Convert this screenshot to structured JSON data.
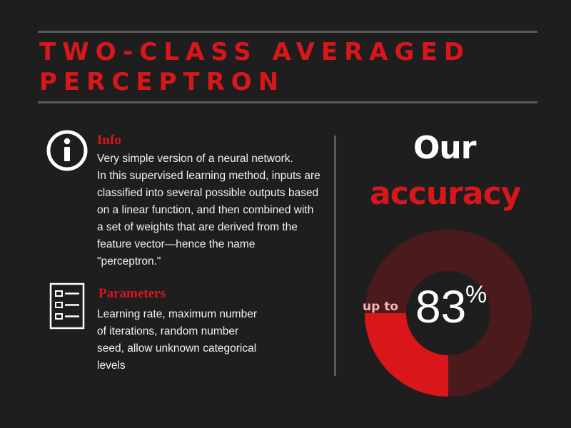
{
  "title": {
    "line1": "TWO-CLASS AVERAGED",
    "line2": "PERCEPTRON"
  },
  "info": {
    "heading": "Info",
    "icon": "info-icon",
    "lines": [
      "Very simple version of a neural network.",
      "In this supervised learning method, inputs are",
      "classified into several possible outputs based",
      "on a linear function, and then combined with",
      "a set of weights that are derived from the",
      "feature vector—hence the name",
      "\"perceptron.\""
    ]
  },
  "parameters": {
    "heading": "Parameters",
    "icon": "document-list-icon",
    "lines": [
      "Learning rate, maximum number",
      "of iterations, random number",
      "seed,  allow unknown categorical",
      "levels"
    ]
  },
  "accuracy": {
    "line1": "Our",
    "line2": "accuracy",
    "prefix": "up to",
    "value": "83",
    "unit": "%",
    "fraction": 0.83
  },
  "colors": {
    "background": "#1e1e1f",
    "accent_red": "#d9171b",
    "dark_red": "#4a1a1c",
    "rule_gray": "#5a5a5a"
  }
}
